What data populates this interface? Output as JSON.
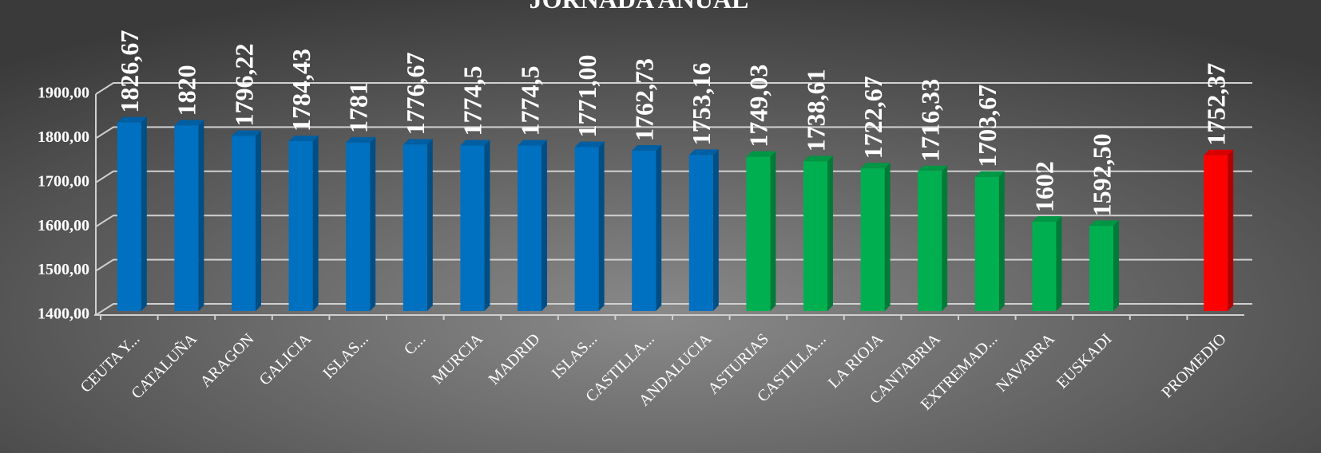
{
  "chart_data": {
    "type": "bar",
    "title": "JORNADA ANUAL",
    "categories": [
      "CEUTA Y...",
      "CATALUÑA",
      "ARAGON",
      "GALICIA",
      "ISLAS...",
      "C...",
      "MURCIA",
      "MADRID",
      "ISLAS...",
      "CASTILLA...",
      "ANDALUCIA",
      "ASTURIAS",
      "CASTILLA...",
      "LA RIOJA",
      "CANTABRIA",
      "EXTREMAD...",
      "NAVARRA",
      "EUSKADI",
      null,
      "PROMEDIO"
    ],
    "values": [
      1826.67,
      1820,
      1796.22,
      1784.43,
      1781,
      1776.67,
      1774.5,
      1774.5,
      1771.0,
      1762.73,
      1753.16,
      1749.03,
      1738.61,
      1722.67,
      1716.33,
      1703.67,
      1602,
      1592.5,
      null,
      1752.37
    ],
    "value_labels": [
      "1826,67",
      "1820",
      "1796,22",
      "1784,43",
      "1781",
      "1776,67",
      "1774,5",
      "1774,5",
      "1771,00",
      "1762,73",
      "1753,16",
      "1749,03",
      "1738,61",
      "1722,67",
      "1716,33",
      "1703,67",
      "1602",
      "1592,50",
      null,
      "1752,37"
    ],
    "colors": [
      "#0070c0",
      "#0070c0",
      "#0070c0",
      "#0070c0",
      "#0070c0",
      "#0070c0",
      "#0070c0",
      "#0070c0",
      "#0070c0",
      "#0070c0",
      "#0070c0",
      "#00b050",
      "#00b050",
      "#00b050",
      "#00b050",
      "#00b050",
      "#00b050",
      "#00b050",
      null,
      "#ff0000"
    ],
    "ylim": [
      1400,
      1900
    ],
    "yticks": [
      {
        "value": 1400,
        "label": "1400,00"
      },
      {
        "value": 1500,
        "label": "1500,00"
      },
      {
        "value": 1600,
        "label": "1600,00"
      },
      {
        "value": 1700,
        "label": "1700,00"
      },
      {
        "value": 1800,
        "label": "1800,00"
      },
      {
        "value": 1900,
        "label": "1900,00"
      }
    ],
    "grid": true
  }
}
